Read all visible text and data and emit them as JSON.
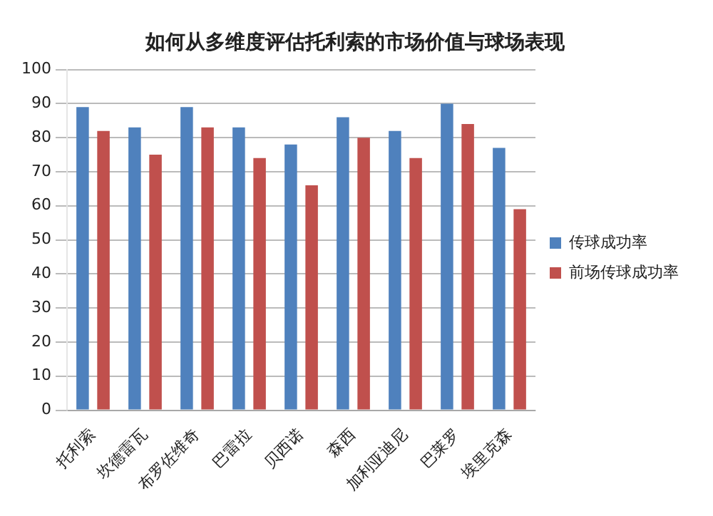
{
  "chart_data": {
    "type": "bar",
    "title": "如何从多维度评估托利索的市场价值与球场表现",
    "categories": [
      "托利索",
      "坎德雷瓦",
      "布罗佐维奇",
      "巴雷拉",
      "贝西诺",
      "森西",
      "加利亚迪尼",
      "巴莱罗",
      "埃里克森"
    ],
    "series": [
      {
        "name": "传球成功率",
        "color": "#4f81bd",
        "values": [
          89,
          83,
          89,
          83,
          78,
          86,
          82,
          90,
          77
        ]
      },
      {
        "name": "前场传球成功率",
        "color": "#c0504d",
        "values": [
          82,
          75,
          83,
          74,
          66,
          80,
          74,
          84,
          59
        ]
      }
    ],
    "ylim": [
      0,
      100
    ],
    "yticks": [
      0,
      10,
      20,
      30,
      40,
      50,
      60,
      70,
      80,
      90,
      100
    ],
    "grid": "y",
    "legend": "right"
  }
}
